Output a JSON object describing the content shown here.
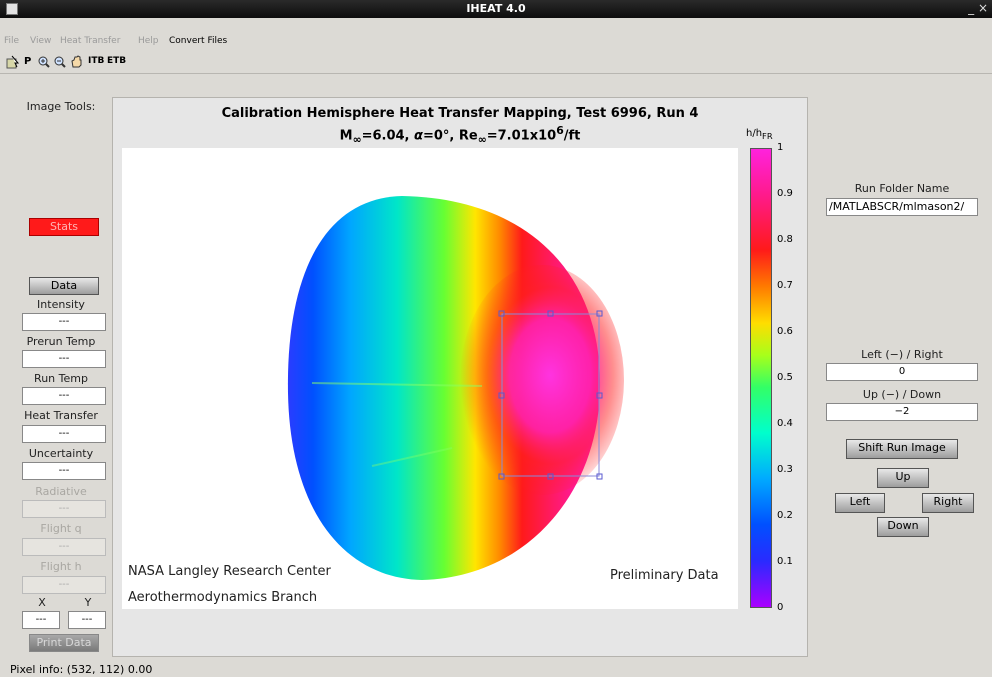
{
  "window": {
    "title": "IHEAT 4.0",
    "controls": "_ ×"
  },
  "menu": [
    "File",
    "View",
    "Heat Transfer",
    "Help",
    "Convert Files"
  ],
  "toolbar": {
    "p_label": "P",
    "itb_label": "ITB",
    "etb_label": "ETB"
  },
  "left": {
    "image_tools": "Image Tools:",
    "stats_label": "Stats",
    "data_label": "Data",
    "fields": [
      {
        "label": "Intensity",
        "value": "---"
      },
      {
        "label": "Prerun Temp",
        "value": "---"
      },
      {
        "label": "Run Temp",
        "value": "---"
      },
      {
        "label": "Heat Transfer",
        "value": "---"
      },
      {
        "label": "Uncertainty",
        "value": "---"
      },
      {
        "label": "Radiative",
        "value": "---"
      },
      {
        "label": "Flight q",
        "value": "---"
      },
      {
        "label": "Flight h",
        "value": "---"
      }
    ],
    "x_label": "X",
    "y_label": "Y",
    "x_value": "---",
    "y_value": "---",
    "print_label": "Print Data"
  },
  "plot": {
    "title_line1": "Calibration Hemisphere Heat Transfer Mapping, Test 6996, Run 4",
    "title_line2_html": "M<sub>∞</sub>=6.04, <i>α</i>=0°, Re<sub>∞</sub>=7.01x10<sup>6</sup>/ft",
    "org_line1": "NASA Langley Research Center",
    "org_line2": "Aerothermodynamics Branch",
    "watermark": "Preliminary Data"
  },
  "colorbar": {
    "title_html": "h/h<sub>FR</sub>",
    "ticks": [
      "1",
      "0.9",
      "0.8",
      "0.7",
      "0.6",
      "0.5",
      "0.4",
      "0.3",
      "0.2",
      "0.1",
      "0"
    ]
  },
  "right": {
    "run_folder_label": "Run Folder Name",
    "run_folder_value": "/MATLABSCR/mlmason2/",
    "left_right_label": "Left (−) / Right",
    "left_right_value": "0",
    "up_down_label": "Up (−) / Down",
    "up_down_value": "−2",
    "shift_label": "Shift Run Image",
    "up_label": "Up",
    "left_label": "Left",
    "right_label": "Right",
    "down_label": "Down"
  },
  "status": "Pixel info: (532, 112)  0.00",
  "colors": {
    "stats_button": "#ff1a1a",
    "panel": "#e6e6e6"
  }
}
